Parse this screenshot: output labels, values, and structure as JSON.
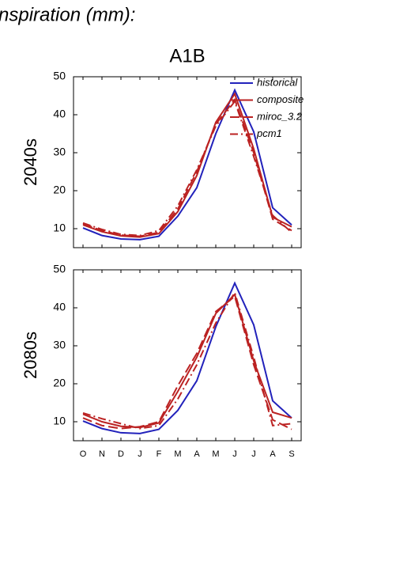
{
  "title": "nspiration (mm):",
  "scenario": "A1B",
  "chart_data": [
    {
      "type": "line",
      "ylabel": "2040s",
      "ylim": [
        5,
        50
      ],
      "yticks": [
        10,
        20,
        30,
        40,
        50
      ],
      "legend": "upper right",
      "series": [
        {
          "name": "historical",
          "color": "#2222bb",
          "style": "solid",
          "values": [
            10.2,
            8.2,
            7.3,
            7.1,
            8.0,
            13.3,
            20.8,
            35,
            46.5,
            35.5,
            15.5,
            11
          ]
        },
        {
          "name": "composite",
          "color": "#bb2222",
          "style": "solid",
          "values": [
            11,
            9.2,
            8.1,
            7.8,
            8.7,
            14.5,
            24,
            38,
            45.5,
            31,
            13,
            10.5
          ]
        },
        {
          "name": "miroc_3.2",
          "color": "#bb2222",
          "style": "dash",
          "values": [
            11.3,
            9.5,
            8.3,
            8.0,
            9.0,
            15.2,
            25,
            37.5,
            44,
            30,
            12.5,
            9.5
          ]
        },
        {
          "name": "pcm1",
          "color": "#bb2222",
          "style": "dashdot",
          "values": [
            11.5,
            9.8,
            8.5,
            8.2,
            9.5,
            16,
            25.5,
            37,
            43.5,
            29,
            13.5,
            9.0
          ]
        }
      ]
    },
    {
      "type": "line",
      "ylabel": "2080s",
      "ylim": [
        5,
        50
      ],
      "yticks": [
        10,
        20,
        30,
        40,
        50
      ],
      "categories": [
        "O",
        "N",
        "D",
        "J",
        "F",
        "M",
        "A",
        "M",
        "J",
        "J",
        "A",
        "S"
      ],
      "series": [
        {
          "color": "#2222bb",
          "style": "solid",
          "values": [
            10.2,
            8.2,
            7.1,
            6.9,
            8.0,
            13,
            20.8,
            35,
            46.5,
            35.5,
            15.5,
            11
          ]
        },
        {
          "color": "#bb2222",
          "style": "solid",
          "values": [
            12,
            10,
            8.8,
            8.5,
            9.7,
            18,
            27,
            38.5,
            43.5,
            26,
            12.5,
            11
          ]
        },
        {
          "color": "#bb2222",
          "style": "dash",
          "values": [
            11,
            9,
            8.2,
            8.7,
            10,
            19.5,
            28,
            39,
            43,
            25,
            10.5,
            8
          ]
        },
        {
          "color": "#bb2222",
          "style": "dashdot",
          "values": [
            12.3,
            10.8,
            9.5,
            8.2,
            9,
            16,
            25,
            36,
            44,
            27,
            9,
            9.5
          ]
        }
      ]
    }
  ]
}
